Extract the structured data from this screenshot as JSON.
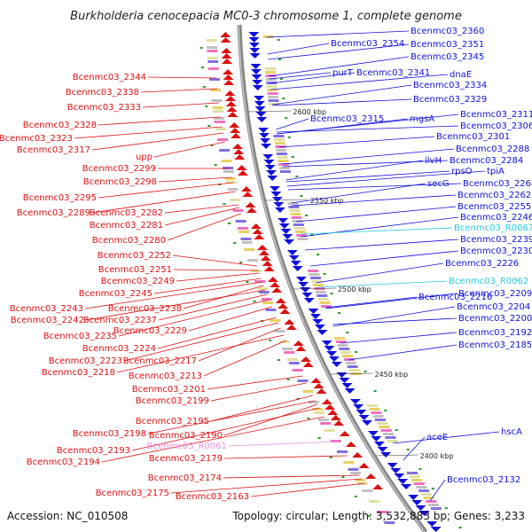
{
  "title": "Burkholderia cenocepacia MC0-3 chromosome 1, complete genome",
  "footer": {
    "accession": "Accession: NC_010508",
    "summary": "Topology: circular; Length: 3,532,883 bp; Genes: 3,233"
  },
  "colors": {
    "forward": "#1010dd",
    "reverse": "#dd1010",
    "rna": "#22c8e8",
    "pseudo": "#e890e0",
    "backbone": "#888888"
  },
  "ticks": [
    "2600 kbp",
    "2550 kbp",
    "2500 kbp",
    "2450 kbp",
    "2400 kbp"
  ],
  "forward_labels": [
    {
      "text": "Bcenmc03_2360",
      "color": "#1010dd"
    },
    {
      "text": "Bcenmc03_2354",
      "color": "#1010dd"
    },
    {
      "text": "Bcenmc03_2351",
      "color": "#1010dd"
    },
    {
      "text": "Bcenmc03_2345",
      "color": "#1010dd"
    },
    {
      "text": "purT",
      "color": "#1010dd"
    },
    {
      "text": "Bcenmc03_2341",
      "color": "#1010dd"
    },
    {
      "text": "dnaE",
      "color": "#1010dd"
    },
    {
      "text": "Bcenmc03_2334",
      "color": "#1010dd"
    },
    {
      "text": "Bcenmc03_2329",
      "color": "#1010dd"
    },
    {
      "text": "Bcenmc03_2315",
      "color": "#1010dd"
    },
    {
      "text": "mgsA",
      "color": "#1010dd"
    },
    {
      "text": "Bcenmc03_2311",
      "color": "#1010dd"
    },
    {
      "text": "Bcenmc03_2306",
      "color": "#1010dd"
    },
    {
      "text": "Bcenmc03_2301",
      "color": "#1010dd"
    },
    {
      "text": "Bcenmc03_2288",
      "color": "#1010dd"
    },
    {
      "text": "ilvH",
      "color": "#1010dd"
    },
    {
      "text": "Bcenmc03_2284",
      "color": "#1010dd"
    },
    {
      "text": "rpsO",
      "color": "#1010dd"
    },
    {
      "text": "tpiA",
      "color": "#1010dd"
    },
    {
      "text": "secG",
      "color": "#1010dd"
    },
    {
      "text": "Bcenmc03_2268",
      "color": "#1010dd"
    },
    {
      "text": "Bcenmc03_2262",
      "color": "#1010dd"
    },
    {
      "text": "Bcenmc03_2255",
      "color": "#1010dd"
    },
    {
      "text": "Bcenmc03_2246",
      "color": "#1010dd"
    },
    {
      "text": "Bcenmc03_R0067",
      "color": "#22c8e8"
    },
    {
      "text": "Bcenmc03_2239",
      "color": "#1010dd"
    },
    {
      "text": "Bcenmc03_2230",
      "color": "#1010dd"
    },
    {
      "text": "Bcenmc03_2226",
      "color": "#1010dd"
    },
    {
      "text": "Bcenmc03_R0062",
      "color": "#22c8e8"
    },
    {
      "text": "Bcenmc03_2216",
      "color": "#1010dd"
    },
    {
      "text": "Bcenmc03_2209",
      "color": "#1010dd"
    },
    {
      "text": "Bcenmc03_2204",
      "color": "#1010dd"
    },
    {
      "text": "Bcenmc03_2200",
      "color": "#1010dd"
    },
    {
      "text": "Bcenmc03_2192",
      "color": "#1010dd"
    },
    {
      "text": "Bcenmc03_2185",
      "color": "#1010dd"
    },
    {
      "text": "aceE",
      "color": "#1010dd"
    },
    {
      "text": "hscA",
      "color": "#1010dd"
    },
    {
      "text": "Bcenmc03_2132",
      "color": "#1010dd"
    }
  ],
  "reverse_labels": [
    {
      "text": "Bcenmc03_2344",
      "color": "#dd1010"
    },
    {
      "text": "Bcenmc03_2338",
      "color": "#dd1010"
    },
    {
      "text": "Bcenmc03_2333",
      "color": "#dd1010"
    },
    {
      "text": "Bcenmc03_2328",
      "color": "#dd1010"
    },
    {
      "text": "Bcenmc03_2323",
      "color": "#dd1010"
    },
    {
      "text": "Bcenmc03_2317",
      "color": "#dd1010"
    },
    {
      "text": "upp",
      "color": "#dd1010"
    },
    {
      "text": "Bcenmc03_2299",
      "color": "#dd1010"
    },
    {
      "text": "Bcenmc03_2298",
      "color": "#dd1010"
    },
    {
      "text": "Bcenmc03_2295",
      "color": "#dd1010"
    },
    {
      "text": "Bcenmc03_2289",
      "color": "#dd1010"
    },
    {
      "text": "Bcenmc03_2282",
      "color": "#dd1010"
    },
    {
      "text": "Bcenmc03_2281",
      "color": "#dd1010"
    },
    {
      "text": "Bcenmc03_2280",
      "color": "#dd1010"
    },
    {
      "text": "Bcenmc03_2252",
      "color": "#dd1010"
    },
    {
      "text": "Bcenmc03_2251",
      "color": "#dd1010"
    },
    {
      "text": "Bcenmc03_2249",
      "color": "#dd1010"
    },
    {
      "text": "Bcenmc03_2245",
      "color": "#dd1010"
    },
    {
      "text": "Bcenmc03_2243",
      "color": "#dd1010"
    },
    {
      "text": "Bcenmc03_2238",
      "color": "#dd1010"
    },
    {
      "text": "Bcenmc03_2242",
      "color": "#dd1010"
    },
    {
      "text": "Bcenmc03_2237",
      "color": "#dd1010"
    },
    {
      "text": "Bcenmc03_2235",
      "color": "#dd1010"
    },
    {
      "text": "Bcenmc03_2229",
      "color": "#dd1010"
    },
    {
      "text": "Bcenmc03_2224",
      "color": "#dd1010"
    },
    {
      "text": "Bcenmc03_2223",
      "color": "#dd1010"
    },
    {
      "text": "Bcenmc03_2217",
      "color": "#dd1010"
    },
    {
      "text": "Bcenmc03_2218",
      "color": "#dd1010"
    },
    {
      "text": "Bcenmc03_2213",
      "color": "#dd1010"
    },
    {
      "text": "Bcenmc03_2201",
      "color": "#dd1010"
    },
    {
      "text": "Bcenmc03_2199",
      "color": "#dd1010"
    },
    {
      "text": "Bcenmc03_2195",
      "color": "#dd1010"
    },
    {
      "text": "Bcenmc03_2198",
      "color": "#dd1010"
    },
    {
      "text": "Bcenmc03_2190",
      "color": "#dd1010"
    },
    {
      "text": "Bcenmc03_2193",
      "color": "#dd1010"
    },
    {
      "text": "Bcenmc03_R0061",
      "color": "#e890e0"
    },
    {
      "text": "Bcenmc03_2194",
      "color": "#dd1010"
    },
    {
      "text": "Bcenmc03_2179",
      "color": "#dd1010"
    },
    {
      "text": "Bcenmc03_2174",
      "color": "#dd1010"
    },
    {
      "text": "Bcenmc03_2175",
      "color": "#dd1010"
    },
    {
      "text": "Bcenmc03_2163",
      "color": "#dd1010"
    }
  ]
}
